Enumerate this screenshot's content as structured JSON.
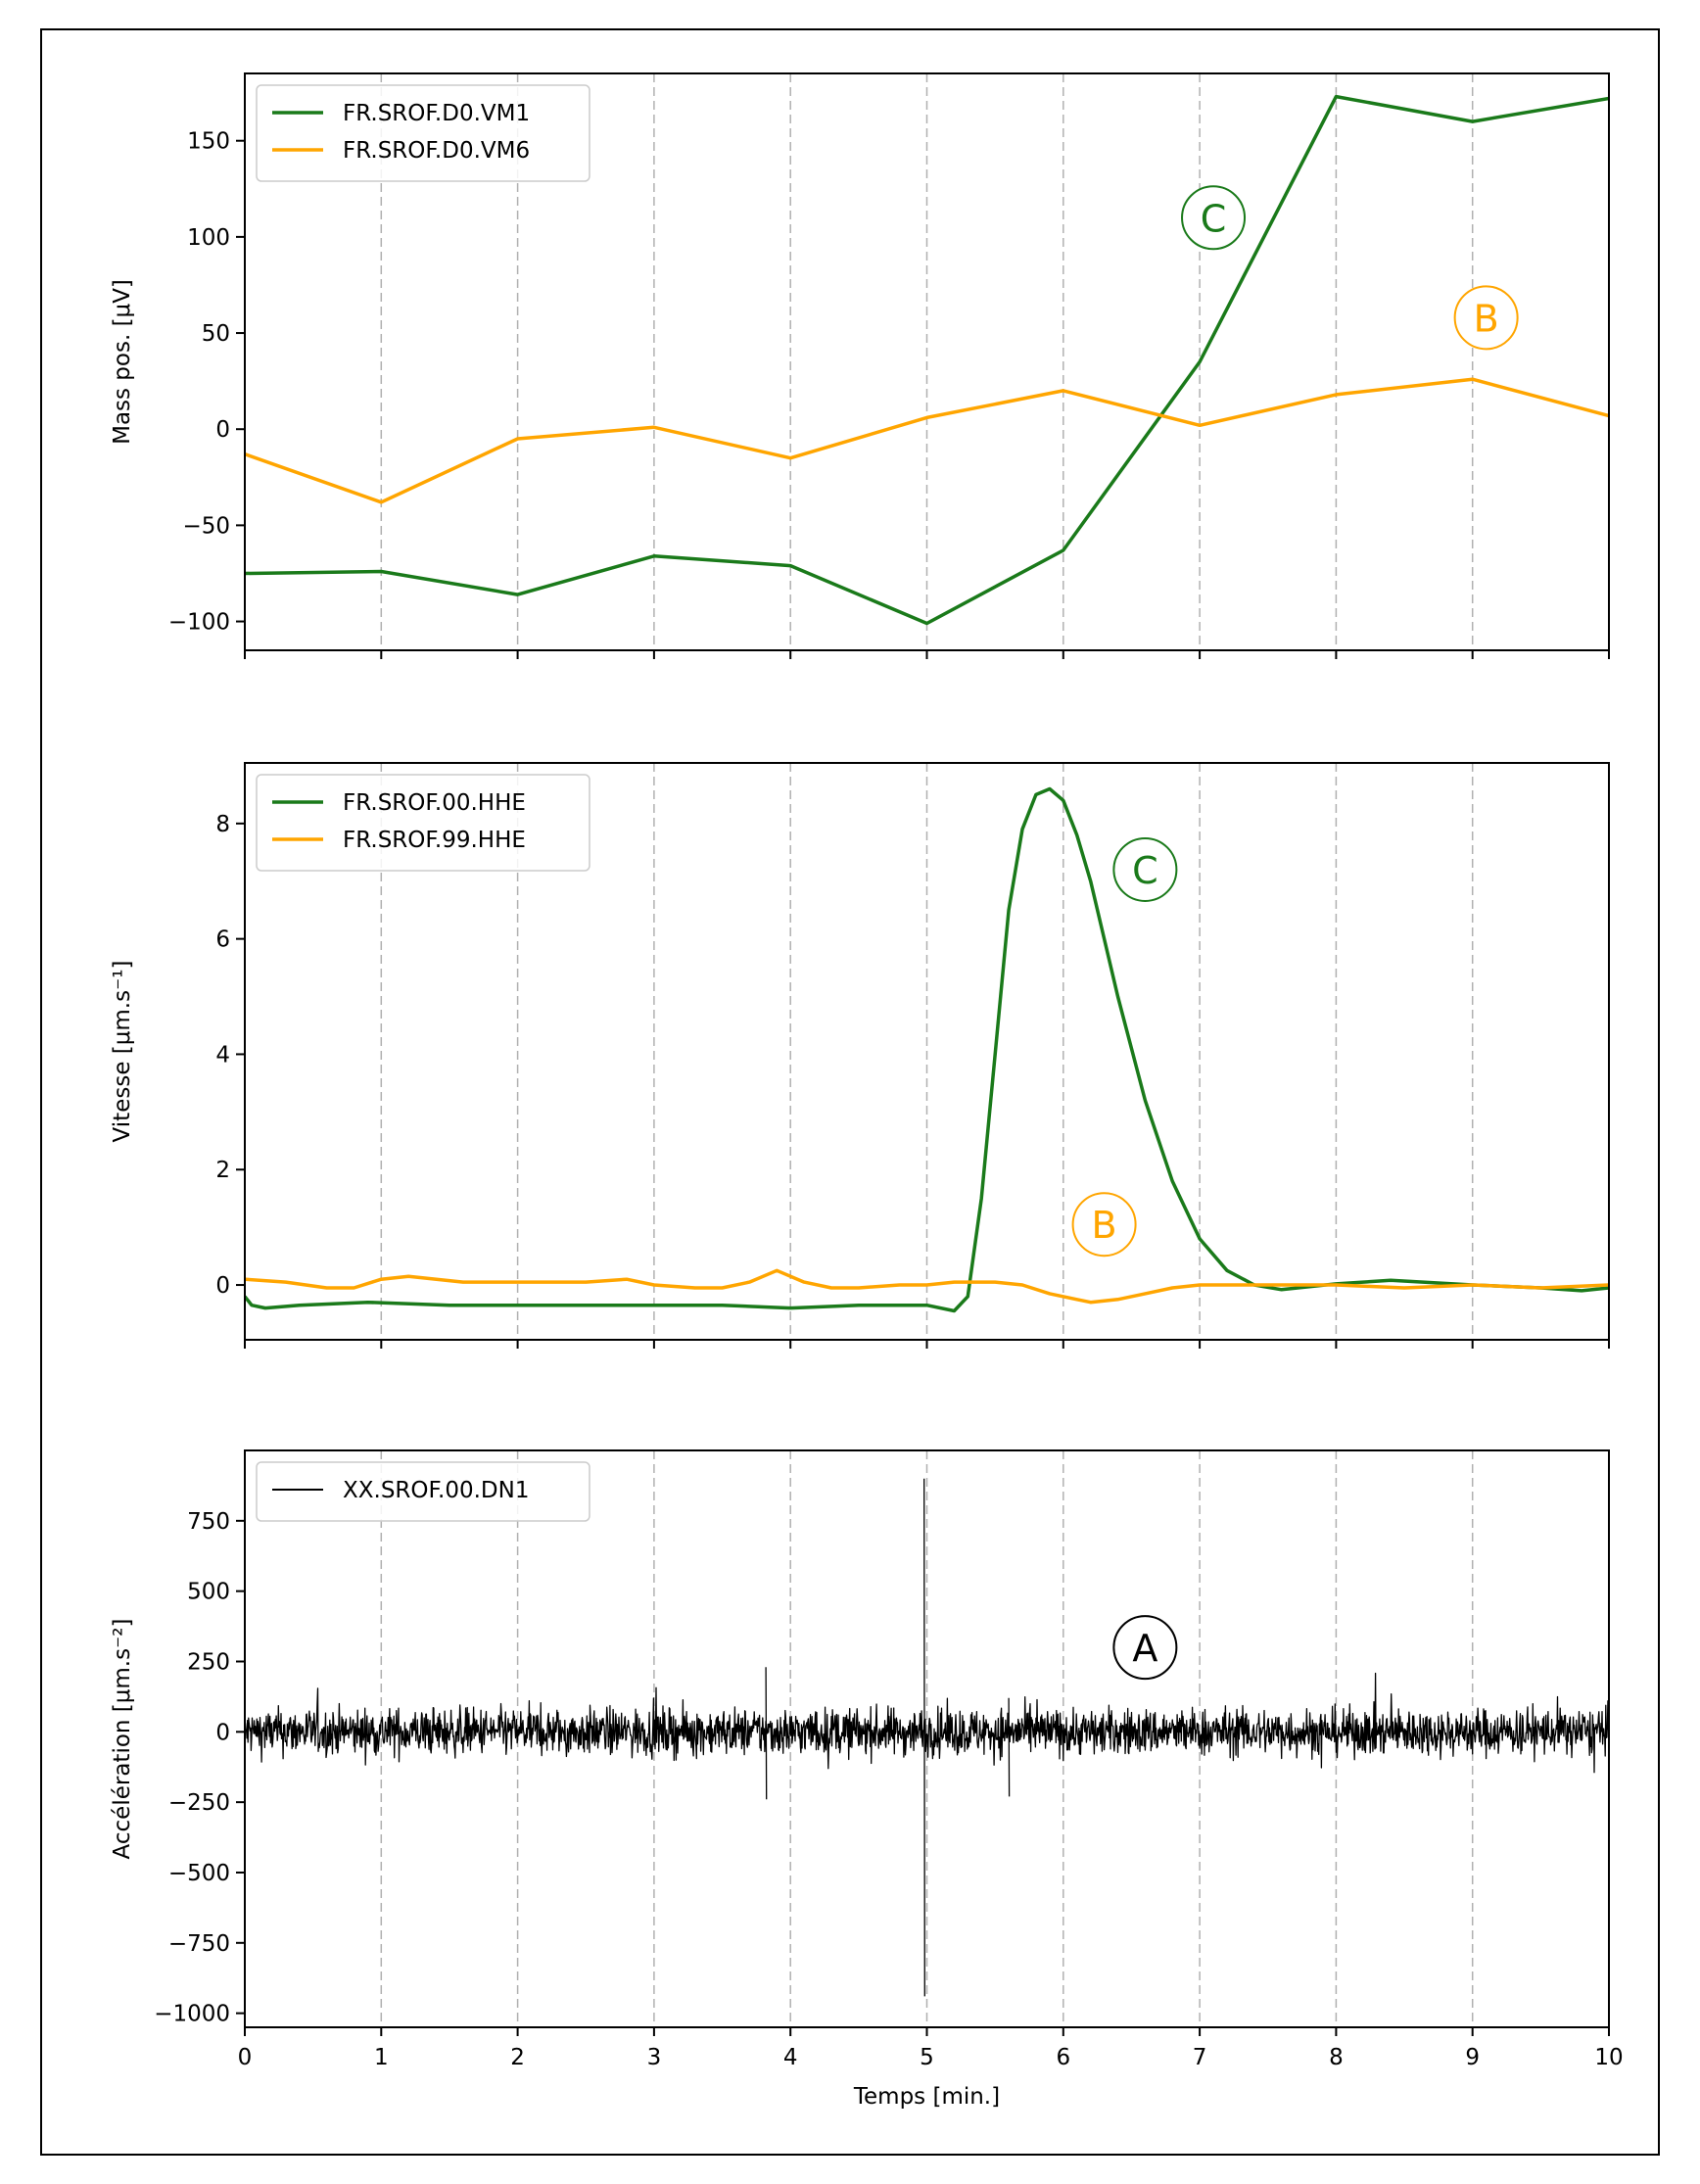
{
  "chart_data": [
    {
      "type": "line",
      "title": "",
      "xlabel": "",
      "ylabel": "Mass pos. [μV]",
      "xlim": [
        0,
        10
      ],
      "ylim": [
        -115,
        185
      ],
      "yticks": [
        -100,
        -50,
        0,
        50,
        100,
        150
      ],
      "ytick_labels": [
        "−100",
        "−50",
        "0",
        "50",
        "100",
        "150"
      ],
      "xticks": [
        0,
        1,
        2,
        3,
        4,
        5,
        6,
        7,
        8,
        9,
        10
      ],
      "show_xtick_labels": false,
      "grid": "vertical dashed",
      "legend": "top-left",
      "series": [
        {
          "name": "FR.SROF.D0.VM1",
          "color": "#1a7a1a",
          "x": [
            0,
            1,
            2,
            3,
            4,
            5,
            6,
            7,
            8,
            9,
            10
          ],
          "y": [
            -75,
            -74,
            -86,
            -66,
            -71,
            -101,
            -63,
            35,
            173,
            160,
            172
          ]
        },
        {
          "name": "FR.SROF.D0.VM6",
          "color": "#ffa500",
          "x": [
            0,
            1,
            2,
            3,
            4,
            5,
            6,
            7,
            8,
            9,
            10
          ],
          "y": [
            -13,
            -38,
            -5,
            1,
            -15,
            6,
            20,
            2,
            18,
            26,
            7
          ]
        }
      ],
      "annotations": [
        {
          "text": "C",
          "x": 7.1,
          "y": 110,
          "color": "#1a7a1a"
        },
        {
          "text": "B",
          "x": 9.1,
          "y": 58,
          "color": "#ffa500"
        }
      ]
    },
    {
      "type": "line",
      "title": "",
      "xlabel": "",
      "ylabel": "Vitesse [μm.s⁻¹]",
      "xlim": [
        0,
        10
      ],
      "ylim": [
        -0.95,
        9.05
      ],
      "yticks": [
        0,
        2,
        4,
        6,
        8
      ],
      "ytick_labels": [
        "0",
        "2",
        "4",
        "6",
        "8"
      ],
      "xticks": [
        0,
        1,
        2,
        3,
        4,
        5,
        6,
        7,
        8,
        9,
        10
      ],
      "show_xtick_labels": false,
      "grid": "vertical dashed",
      "legend": "top-left",
      "series": [
        {
          "name": "FR.SROF.00.HHE",
          "color": "#1a7a1a",
          "x": [
            0,
            0.05,
            0.15,
            0.4,
            0.9,
            1.5,
            2.5,
            3.5,
            4.0,
            4.5,
            5.0,
            5.2,
            5.3,
            5.4,
            5.5,
            5.6,
            5.7,
            5.8,
            5.9,
            6.0,
            6.1,
            6.2,
            6.3,
            6.4,
            6.6,
            6.8,
            7.0,
            7.2,
            7.4,
            7.6,
            8.0,
            8.4,
            9.0,
            9.5,
            9.8,
            10
          ],
          "y": [
            -0.2,
            -0.35,
            -0.4,
            -0.35,
            -0.3,
            -0.35,
            -0.35,
            -0.35,
            -0.4,
            -0.35,
            -0.35,
            -0.45,
            -0.2,
            1.5,
            4.0,
            6.5,
            7.9,
            8.5,
            8.6,
            8.4,
            7.8,
            7.0,
            6.0,
            5.0,
            3.2,
            1.8,
            0.8,
            0.25,
            0.0,
            -0.08,
            0.02,
            0.08,
            0.0,
            -0.05,
            -0.1,
            -0.05
          ]
        },
        {
          "name": "FR.SROF.99.HHE",
          "color": "#ffa500",
          "x": [
            0,
            0.3,
            0.6,
            0.8,
            1.0,
            1.2,
            1.6,
            2.0,
            2.5,
            2.8,
            3.0,
            3.3,
            3.5,
            3.7,
            3.9,
            4.1,
            4.3,
            4.5,
            4.8,
            5.0,
            5.2,
            5.5,
            5.7,
            5.9,
            6.1,
            6.2,
            6.4,
            6.6,
            6.8,
            7.0,
            7.5,
            8.0,
            8.5,
            9.0,
            9.5,
            10
          ],
          "y": [
            0.1,
            0.05,
            -0.05,
            -0.05,
            0.1,
            0.15,
            0.05,
            0.05,
            0.05,
            0.1,
            0.0,
            -0.05,
            -0.05,
            0.05,
            0.25,
            0.05,
            -0.05,
            -0.05,
            0.0,
            0.0,
            0.05,
            0.05,
            0.0,
            -0.15,
            -0.25,
            -0.3,
            -0.25,
            -0.15,
            -0.05,
            0.0,
            0.0,
            0.0,
            -0.05,
            0.0,
            -0.05,
            0.0
          ]
        }
      ],
      "annotations": [
        {
          "text": "C",
          "x": 6.6,
          "y": 7.2,
          "color": "#1a7a1a"
        },
        {
          "text": "B",
          "x": 6.3,
          "y": 1.05,
          "color": "#ffa500"
        }
      ]
    },
    {
      "type": "line",
      "title": "",
      "xlabel": "Temps [min.]",
      "ylabel": "Accélération [μm.s⁻²]",
      "xlim": [
        0,
        10
      ],
      "ylim": [
        -1050,
        1000
      ],
      "yticks": [
        -1000,
        -750,
        -500,
        -250,
        0,
        250,
        500,
        750
      ],
      "ytick_labels": [
        "−1000",
        "−750",
        "−500",
        "−250",
        "0",
        "250",
        "500",
        "750"
      ],
      "xticks": [
        0,
        1,
        2,
        3,
        4,
        5,
        6,
        7,
        8,
        9,
        10
      ],
      "xtick_labels": [
        "0",
        "1",
        "2",
        "3",
        "4",
        "5",
        "6",
        "7",
        "8",
        "9",
        "10"
      ],
      "show_xtick_labels": true,
      "grid": "vertical dashed",
      "legend": "top-left",
      "series": [
        {
          "name": "XX.SROF.00.DN1",
          "color": "#000000",
          "style": "noise",
          "noise_amplitude": 90,
          "spikes": [
            {
              "x": 3.82,
              "y_max": 230,
              "y_min": -240
            },
            {
              "x": 4.98,
              "y_max": 900,
              "y_min": -940
            },
            {
              "x": 5.6,
              "y_max": 120,
              "y_min": -230
            }
          ]
        }
      ],
      "annotations": [
        {
          "text": "A",
          "x": 6.6,
          "y": 300,
          "color": "#000000"
        }
      ]
    }
  ]
}
